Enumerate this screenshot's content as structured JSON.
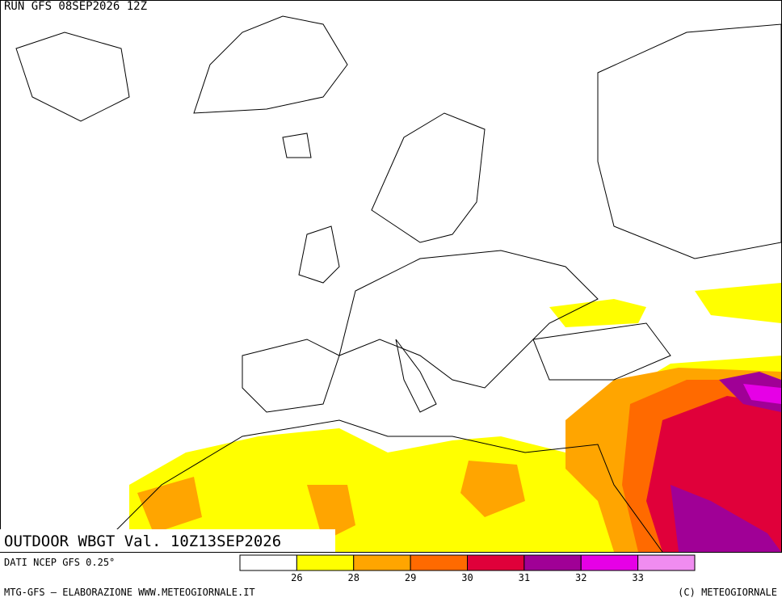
{
  "header": {
    "run": "RUN GFS 08SEP2026 12Z"
  },
  "map": {
    "title": "OUTDOOR WBGT Val. 10Z13SEP2026"
  },
  "legend": {
    "source": "DATI NCEP GFS 0.25°",
    "colors": [
      "#ffffff",
      "#ffff00",
      "#ffa500",
      "#ff6a00",
      "#e0003a",
      "#a00096",
      "#e600e6",
      "#f08cf0"
    ],
    "ticks": [
      26,
      28,
      29,
      30,
      31,
      32,
      33
    ]
  },
  "footer": {
    "left": "MTG-GFS — ELABORAZIONE WWW.METEOGIORNALE.IT",
    "right": "(C) METEOGIORNALE"
  }
}
